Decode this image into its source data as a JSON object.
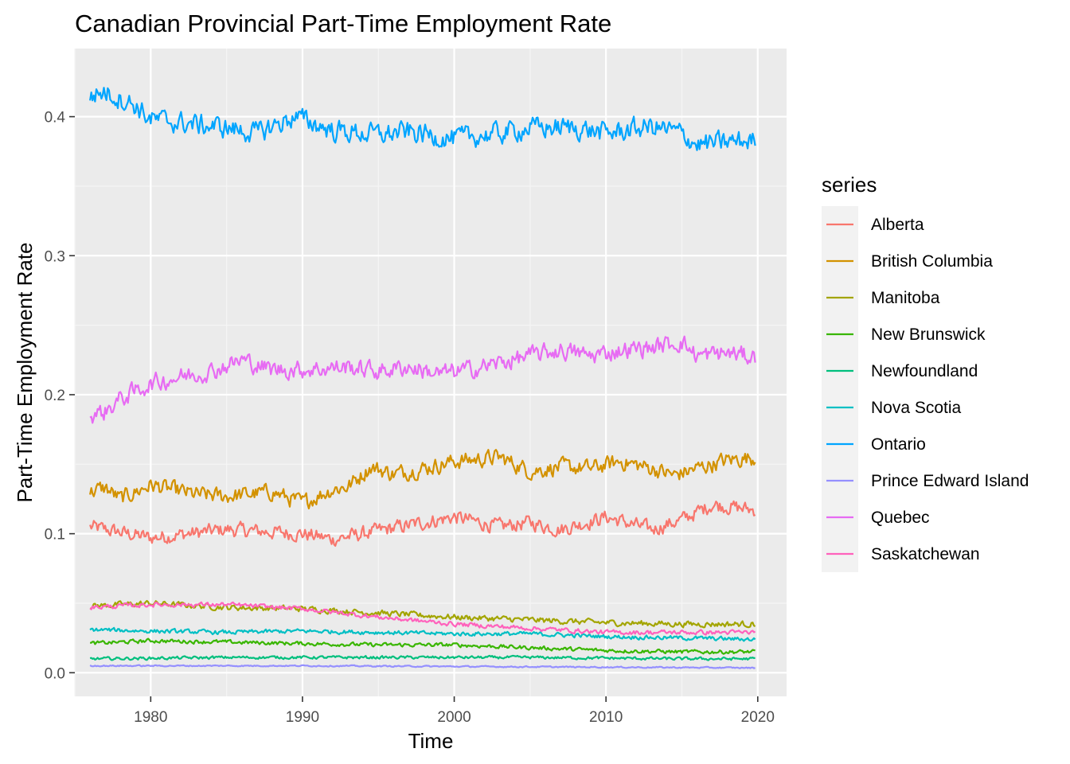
{
  "chart_data": {
    "type": "line",
    "title": "Canadian Provincial Part-Time Employment Rate",
    "xlabel": "Time",
    "ylabel": "Part-Time Employment Rate",
    "xlim": [
      1975,
      2021.9
    ],
    "ylim": [
      -0.017,
      0.449
    ],
    "x_ticks": [
      1980,
      1990,
      2000,
      2010,
      2020
    ],
    "y_ticks": [
      0.0,
      0.1,
      0.2,
      0.3,
      0.4
    ],
    "x_tick_labels": [
      "1980",
      "1990",
      "2000",
      "2010",
      "2020"
    ],
    "y_tick_labels": [
      "0.0",
      "0.1",
      "0.2",
      "0.3",
      "0.4"
    ],
    "grid": true,
    "legend_title": "series",
    "legend_position": "right",
    "x_start": 1976.0,
    "x_end": 2019.83,
    "series": [
      {
        "name": "Alberta",
        "color": "#F8766D",
        "noise": 0.0045,
        "points": [
          [
            1976,
            0.105
          ],
          [
            1980,
            0.097
          ],
          [
            1985,
            0.103
          ],
          [
            1990,
            0.1
          ],
          [
            1992,
            0.096
          ],
          [
            1995,
            0.102
          ],
          [
            2000,
            0.112
          ],
          [
            2003,
            0.105
          ],
          [
            2005,
            0.108
          ],
          [
            2007,
            0.103
          ],
          [
            2010,
            0.112
          ],
          [
            2013,
            0.103
          ],
          [
            2015,
            0.11
          ],
          [
            2017,
            0.121
          ],
          [
            2019.83,
            0.117
          ]
        ]
      },
      {
        "name": "British Columbia",
        "color": "#C77CFF00",
        "noise": 0.0,
        "points": []
      },
      {
        "name": "Manitoba",
        "color": "#A3A500",
        "noise": 0.0018,
        "points": [
          [
            1976,
            0.048
          ],
          [
            1980,
            0.05
          ],
          [
            1985,
            0.047
          ],
          [
            1990,
            0.046
          ],
          [
            1995,
            0.043
          ],
          [
            2000,
            0.04
          ],
          [
            2005,
            0.038
          ],
          [
            2010,
            0.036
          ],
          [
            2015,
            0.035
          ],
          [
            2019.83,
            0.035
          ]
        ]
      },
      {
        "name": "New Brunswick",
        "color": "#39B600",
        "noise": 0.0012,
        "points": [
          [
            1976,
            0.021
          ],
          [
            1980,
            0.023
          ],
          [
            1985,
            0.022
          ],
          [
            1990,
            0.021
          ],
          [
            1995,
            0.02
          ],
          [
            2000,
            0.02
          ],
          [
            2005,
            0.018
          ],
          [
            2010,
            0.016
          ],
          [
            2015,
            0.015
          ],
          [
            2019.83,
            0.015
          ]
        ]
      },
      {
        "name": "Newfoundland",
        "color": "#00BF7D",
        "noise": 0.0009,
        "points": [
          [
            1976,
            0.01
          ],
          [
            1985,
            0.011
          ],
          [
            1995,
            0.011
          ],
          [
            2005,
            0.011
          ],
          [
            2015,
            0.01
          ],
          [
            2019.83,
            0.01
          ]
        ]
      },
      {
        "name": "Nova Scotia",
        "color": "#00BFC4",
        "noise": 0.0013,
        "points": [
          [
            1976,
            0.031
          ],
          [
            1980,
            0.03
          ],
          [
            1985,
            0.029
          ],
          [
            1990,
            0.03
          ],
          [
            1995,
            0.029
          ],
          [
            2000,
            0.028
          ],
          [
            2005,
            0.028
          ],
          [
            2010,
            0.026
          ],
          [
            2015,
            0.025
          ],
          [
            2019.83,
            0.024
          ]
        ]
      },
      {
        "name": "Ontario",
        "color": "#00A5FF",
        "noise": 0.0065,
        "points": [
          [
            1976,
            0.415
          ],
          [
            1977,
            0.418
          ],
          [
            1979,
            0.408
          ],
          [
            1980,
            0.398
          ],
          [
            1985,
            0.392
          ],
          [
            1987,
            0.388
          ],
          [
            1989.5,
            0.4
          ],
          [
            1992,
            0.39
          ],
          [
            1995,
            0.387
          ],
          [
            1997,
            0.389
          ],
          [
            2000,
            0.384
          ],
          [
            2003,
            0.388
          ],
          [
            2005,
            0.392
          ],
          [
            2008,
            0.392
          ],
          [
            2010,
            0.388
          ],
          [
            2013,
            0.393
          ],
          [
            2015,
            0.388
          ],
          [
            2016,
            0.38
          ],
          [
            2019.83,
            0.383
          ]
        ]
      },
      {
        "name": "Prince Edward Island",
        "color": "#9590FF",
        "noise": 0.0004,
        "points": [
          [
            1976,
            0.005
          ],
          [
            1990,
            0.005
          ],
          [
            2000,
            0.0045
          ],
          [
            2010,
            0.004
          ],
          [
            2019.83,
            0.0035
          ]
        ]
      },
      {
        "name": "Quebec",
        "color": "#E76BF3",
        "noise": 0.0055,
        "points": [
          [
            1976,
            0.185
          ],
          [
            1977,
            0.188
          ],
          [
            1978,
            0.197
          ],
          [
            1980,
            0.208
          ],
          [
            1982,
            0.213
          ],
          [
            1984,
            0.217
          ],
          [
            1986,
            0.225
          ],
          [
            1988,
            0.218
          ],
          [
            1990,
            0.218
          ],
          [
            1993,
            0.22
          ],
          [
            1995,
            0.217
          ],
          [
            1997,
            0.22
          ],
          [
            1999,
            0.215
          ],
          [
            2001,
            0.218
          ],
          [
            2003,
            0.223
          ],
          [
            2005,
            0.228
          ],
          [
            2007,
            0.232
          ],
          [
            2009,
            0.228
          ],
          [
            2011,
            0.232
          ],
          [
            2013,
            0.234
          ],
          [
            2015,
            0.238
          ],
          [
            2016,
            0.228
          ],
          [
            2018,
            0.23
          ],
          [
            2019.83,
            0.227
          ]
        ]
      },
      {
        "name": "Saskatchewan",
        "color": "#FF62BC",
        "noise": 0.0014,
        "points": [
          [
            1976,
            0.047
          ],
          [
            1980,
            0.049
          ],
          [
            1985,
            0.049
          ],
          [
            1990,
            0.046
          ],
          [
            1995,
            0.04
          ],
          [
            2000,
            0.035
          ],
          [
            2005,
            0.032
          ],
          [
            2010,
            0.029
          ],
          [
            2015,
            0.029
          ],
          [
            2019.83,
            0.029
          ]
        ]
      }
    ]
  }
}
